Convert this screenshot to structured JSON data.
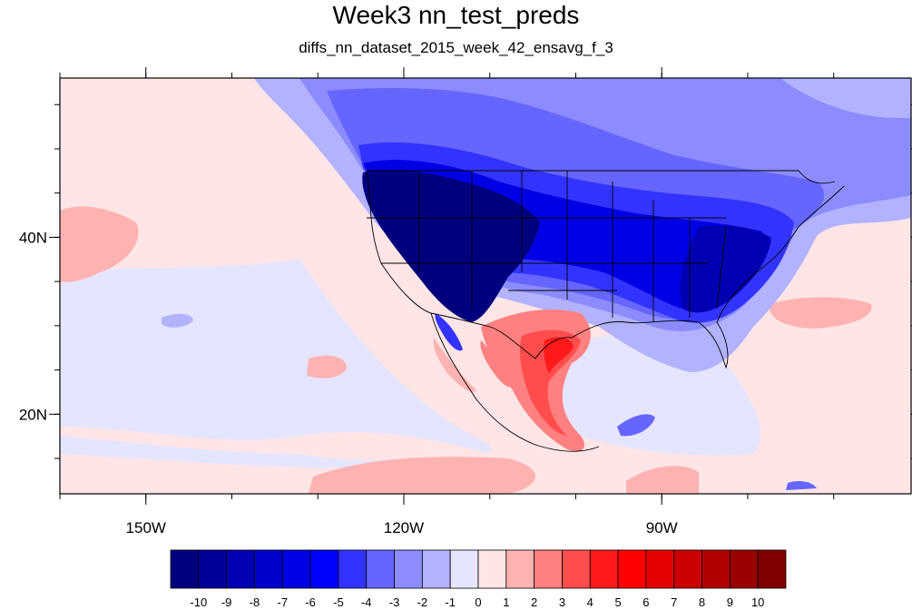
{
  "title": "Week3 nn_test_preds",
  "subtitle": "diffs_nn_dataset_2015_week_42_ensavg_f_3",
  "map": {
    "projection": "cylindrical-equidistant",
    "lon_range": [
      -160,
      -61
    ],
    "lat_range": [
      11,
      58
    ],
    "lon_ticks": [
      {
        "value": -150,
        "label": "150W"
      },
      {
        "value": -120,
        "label": "120W"
      },
      {
        "value": -90,
        "label": "90W"
      }
    ],
    "lat_ticks": [
      {
        "value": 40,
        "label": "40N"
      },
      {
        "value": 20,
        "label": "20N"
      }
    ],
    "minor_lon_step": 10,
    "minor_lat_step": 5,
    "background_field_color": "#ffe5e5"
  },
  "colorbar": {
    "labels": [
      "-10",
      "-9",
      "-8",
      "-7",
      "-6",
      "-5",
      "-4",
      "-3",
      "-2",
      "-1",
      "0",
      "1",
      "2",
      "3",
      "4",
      "5",
      "6",
      "7",
      "8",
      "9",
      "10"
    ],
    "colors": [
      "#00007f",
      "#000099",
      "#0000b2",
      "#0000cc",
      "#0000e5",
      "#0000ff",
      "#3333ff",
      "#6666ff",
      "#8c8cff",
      "#b2b2ff",
      "#e5e5ff",
      "#ffe5e5",
      "#ffb2b2",
      "#ff8080",
      "#ff4d4d",
      "#ff1a1a",
      "#ff0000",
      "#e50000",
      "#cc0000",
      "#b20000",
      "#990000",
      "#7f0000"
    ]
  }
}
